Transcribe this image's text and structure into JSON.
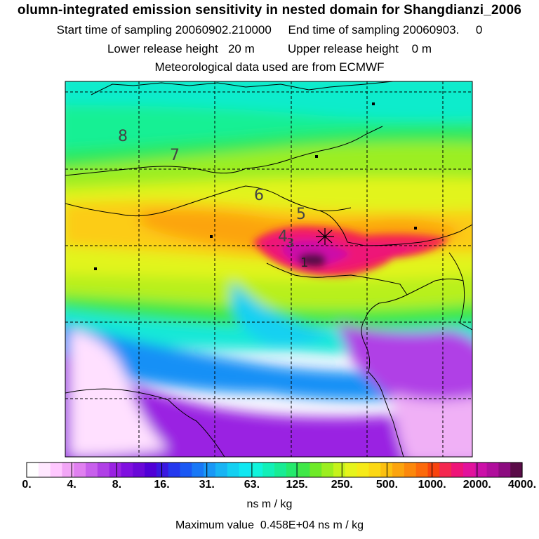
{
  "header": {
    "title": "olumn-integrated emission sensitivity in nested domain for Shangdianzi_2006",
    "sampling_line": "Start time of sampling 20060902.210000     End time of sampling 20060903.     0",
    "release_line": "Lower release height   20 m          Upper release height    0 m",
    "met_line": "Meteorological data used are from ECMWF"
  },
  "map": {
    "contour_labels": [
      "8",
      "7",
      "6",
      "5",
      "4",
      "3",
      "1"
    ],
    "station_marker": "receptor-star"
  },
  "colorbar": {
    "tick_labels": [
      "0.",
      "4.",
      "8.",
      "16.",
      "31.",
      "63.",
      "125.",
      "250.",
      "500.",
      "1000.",
      "2000.",
      "4000."
    ],
    "colors": [
      "#ffffff",
      "#ffe8ff",
      "#ffc8ff",
      "#f2a6f6",
      "#e080f0",
      "#c860ec",
      "#b040e6",
      "#9a22e2",
      "#8010e0",
      "#6a08d8",
      "#5000d6",
      "#3a18e0",
      "#2438ee",
      "#1a58f4",
      "#1878f6",
      "#1898f6",
      "#18b4f4",
      "#14d0f2",
      "#10e8f2",
      "#10f4dc",
      "#12f0b8",
      "#18ec94",
      "#24ea6c",
      "#40e848",
      "#6eea28",
      "#9cee20",
      "#c6f21c",
      "#e6f41c",
      "#f6ea18",
      "#fcd814",
      "#fcc010",
      "#fca40e",
      "#fc880c",
      "#fc6a0c",
      "#f8440e",
      "#f42850",
      "#ee1478",
      "#e2129c",
      "#cc10a8",
      "#b00e9c",
      "#8c0c80",
      "#5a0c48"
    ],
    "units": "ns m / kg",
    "max_value_text": "Maximum value  0.458E+04 ns m / kg"
  }
}
